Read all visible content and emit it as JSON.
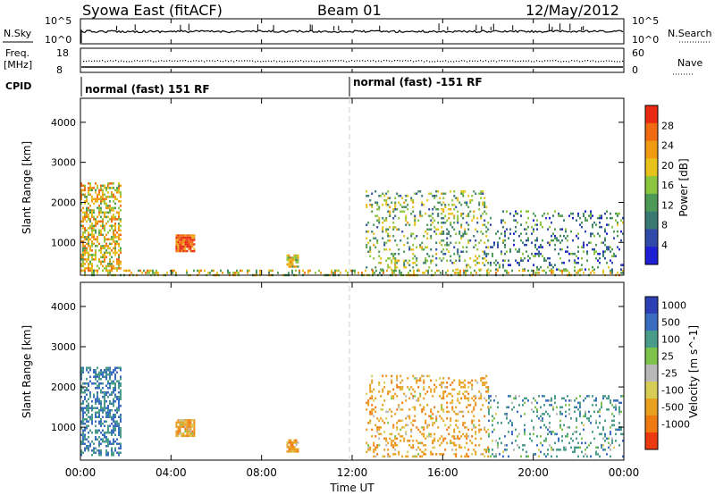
{
  "header": {
    "station": "Syowa East (fitACF)",
    "beam": "Beam 01",
    "date": "12/May/2012"
  },
  "colors": {
    "power_scale": [
      "#1f1fd6",
      "#2f4aa8",
      "#3a7a72",
      "#4c9a56",
      "#8cc63f",
      "#e6c21a",
      "#f09a12",
      "#ef6a10",
      "#e82a12"
    ],
    "velocity_scale": [
      "#2d3fb5",
      "#3a6cc0",
      "#4a9c8a",
      "#7cc24b",
      "#b8b8b8",
      "#d7cc55",
      "#e8a01e",
      "#f07a12",
      "#ec3a10"
    ]
  },
  "chart_data": [
    {
      "type": "line",
      "panel": "nsky-nsearch",
      "left_label": "N.Sky",
      "left_ticks": [
        "10^5",
        "10^0"
      ],
      "right_label": "N.Search",
      "right_ticks": [
        "10^5",
        "10^0"
      ]
    },
    {
      "type": "scatter",
      "panel": "freq-nave",
      "left_label": [
        "Freq.",
        "[MHz]"
      ],
      "left_ticks": [
        18,
        8
      ],
      "right_label": "Nave",
      "right_ticks": [
        60,
        0
      ],
      "freq_mhz": 12
    },
    {
      "type": "table",
      "panel": "cpid",
      "label": "CPID",
      "segments": [
        {
          "start": "00:00",
          "end": "12:00",
          "text": "normal (fast) 151 RF"
        },
        {
          "start": "12:00",
          "end": "24:00",
          "text": "normal (fast) -151 RF"
        }
      ]
    },
    {
      "type": "heatmap",
      "panel": "power",
      "ylabel": "Slant Range [km]",
      "ylim": [
        180,
        4600
      ],
      "yticks": [
        1000,
        2000,
        3000,
        4000
      ],
      "xlim_hours": [
        0,
        24
      ],
      "colorbar": {
        "label": "Power [dB]",
        "ticks": [
          4,
          8,
          12,
          16,
          20,
          24,
          28
        ],
        "range": [
          0,
          32
        ]
      },
      "blobs": [
        {
          "t0": 0.0,
          "t1": 1.8,
          "r0": 300,
          "r1": 2500,
          "value": 20,
          "density": 0.55
        },
        {
          "t0": 4.2,
          "t1": 5.0,
          "r0": 800,
          "r1": 1200,
          "value": 28,
          "density": 0.9
        },
        {
          "t0": 9.1,
          "t1": 9.6,
          "r0": 400,
          "r1": 700,
          "value": 18,
          "density": 0.8
        },
        {
          "t0": 12.6,
          "t1": 18.0,
          "r0": 300,
          "r1": 2300,
          "value": 14,
          "density": 0.22
        },
        {
          "t0": 18.0,
          "t1": 24.0,
          "r0": 300,
          "r1": 1800,
          "value": 10,
          "density": 0.18
        },
        {
          "t0": 0.0,
          "t1": 24.0,
          "r0": 200,
          "r1": 320,
          "value": 18,
          "density": 0.35
        }
      ]
    },
    {
      "type": "heatmap",
      "panel": "velocity",
      "ylabel": "Slant Range [km]",
      "ylim": [
        180,
        4600
      ],
      "yticks": [
        1000,
        2000,
        3000,
        4000
      ],
      "xlabel": "Time UT",
      "xticks": [
        "00:00",
        "04:00",
        "08:00",
        "12:00",
        "16:00",
        "20:00",
        "00:00"
      ],
      "xlim_hours": [
        0,
        24
      ],
      "colorbar": {
        "label": "Velocity [m s^-1]",
        "ticks": [
          1000,
          500,
          100,
          25,
          -25,
          -100,
          -500,
          -1000
        ]
      },
      "blobs": [
        {
          "t0": 0.0,
          "t1": 1.8,
          "r0": 300,
          "r1": 2500,
          "value": 500,
          "density": 0.5
        },
        {
          "t0": 4.2,
          "t1": 5.0,
          "r0": 800,
          "r1": 1200,
          "value": -300,
          "density": 0.9
        },
        {
          "t0": 9.1,
          "t1": 9.6,
          "r0": 400,
          "r1": 700,
          "value": -300,
          "density": 0.8
        },
        {
          "t0": 12.6,
          "t1": 18.0,
          "r0": 300,
          "r1": 2300,
          "value": -300,
          "density": 0.22
        },
        {
          "t0": 18.0,
          "t1": 24.0,
          "r0": 300,
          "r1": 1800,
          "value": 300,
          "density": 0.18
        }
      ]
    }
  ]
}
